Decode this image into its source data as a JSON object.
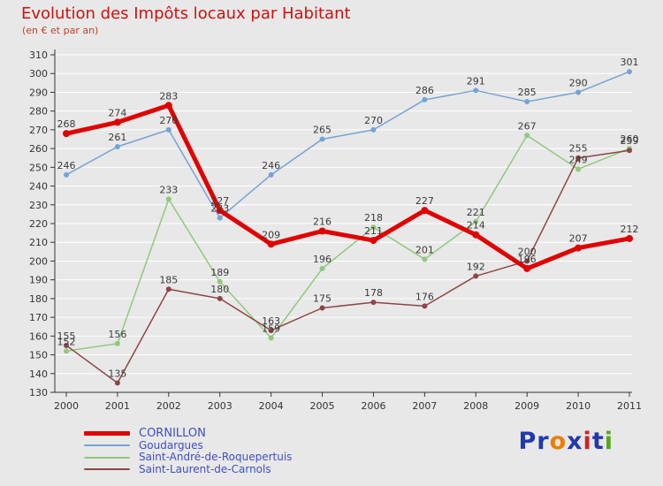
{
  "chart_data": {
    "type": "line",
    "title": "Evolution des Impôts locaux par Habitant",
    "subtitle": "(en € et par an)",
    "x": [
      2000,
      2001,
      2002,
      2003,
      2004,
      2005,
      2006,
      2007,
      2008,
      2009,
      2010,
      2011
    ],
    "xlabel": "",
    "ylabel": "",
    "ylim": [
      130,
      310
    ],
    "ytick_step": 10,
    "grid": true,
    "legend_position": "bottom-left",
    "series": [
      {
        "name": "CORNILLON",
        "color": "#e10000",
        "width": 5,
        "values": [
          268,
          274,
          283,
          227,
          209,
          216,
          211,
          227,
          214,
          196,
          207,
          212
        ]
      },
      {
        "name": "Goudargues",
        "color": "#74a3d6",
        "width": 1.5,
        "values": [
          246,
          261,
          270,
          223,
          246,
          265,
          270,
          286,
          291,
          285,
          290,
          301
        ]
      },
      {
        "name": "Saint-André-de-Roquepertuis",
        "color": "#90c87e",
        "width": 1.5,
        "values": [
          152,
          156,
          233,
          189,
          159,
          196,
          218,
          201,
          221,
          267,
          249,
          260
        ]
      },
      {
        "name": "Saint-Laurent-de-Carnols",
        "color": "#8d4646",
        "width": 1.5,
        "values": [
          155,
          135,
          185,
          180,
          163,
          175,
          178,
          176,
          192,
          200,
          255,
          259
        ]
      }
    ]
  },
  "logo": {
    "text": "Proxiti",
    "letters": [
      {
        "ch": "P",
        "color": "#2238b0"
      },
      {
        "ch": "r",
        "color": "#2238b0"
      },
      {
        "ch": "o",
        "color": "#f07d00"
      },
      {
        "ch": "x",
        "color": "#2238b0"
      },
      {
        "ch": "i",
        "color": "#d42020"
      },
      {
        "ch": "t",
        "color": "#2238b0"
      },
      {
        "ch": "i",
        "color": "#58a81c"
      }
    ]
  }
}
